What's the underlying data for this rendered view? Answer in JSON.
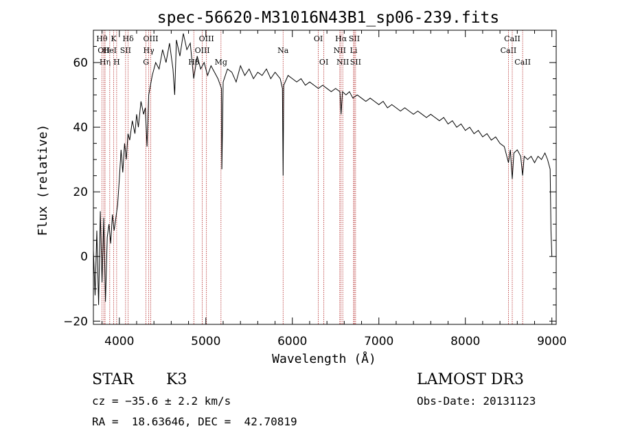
{
  "chart_data": {
    "type": "line",
    "title": "spec-56620-M31016N43B1_sp06-239.fits",
    "xlabel": "Wavelength (Å)",
    "ylabel": "Flux (relative)",
    "xlim": [
      3700,
      9050
    ],
    "ylim": [
      -21,
      70
    ],
    "xticks": [
      4000,
      5000,
      6000,
      7000,
      8000,
      9000
    ],
    "xtick_labels": [
      "4000",
      "5000",
      "6000",
      "7000",
      "8000",
      "9000"
    ],
    "yticks": [
      -20,
      0,
      20,
      40,
      60
    ],
    "ytick_labels": [
      "−20",
      "0",
      "20",
      "40",
      "60"
    ],
    "line_color": "#000000",
    "marker_color": "#b22222",
    "spectrum": [
      [
        3700,
        2
      ],
      [
        3720,
        -12
      ],
      [
        3740,
        8
      ],
      [
        3760,
        -15
      ],
      [
        3780,
        14
      ],
      [
        3800,
        -8
      ],
      [
        3820,
        12
      ],
      [
        3840,
        -14
      ],
      [
        3860,
        6
      ],
      [
        3880,
        10
      ],
      [
        3900,
        4
      ],
      [
        3920,
        13
      ],
      [
        3940,
        8
      ],
      [
        3960,
        12
      ],
      [
        3980,
        16
      ],
      [
        4000,
        24
      ],
      [
        4020,
        33
      ],
      [
        4040,
        26
      ],
      [
        4060,
        35
      ],
      [
        4080,
        30
      ],
      [
        4100,
        38
      ],
      [
        4120,
        36
      ],
      [
        4150,
        42
      ],
      [
        4180,
        38
      ],
      [
        4200,
        44
      ],
      [
        4220,
        40
      ],
      [
        4250,
        48
      ],
      [
        4280,
        44
      ],
      [
        4300,
        46
      ],
      [
        4320,
        34
      ],
      [
        4340,
        50
      ],
      [
        4380,
        56
      ],
      [
        4420,
        60
      ],
      [
        4460,
        58
      ],
      [
        4500,
        64
      ],
      [
        4540,
        60
      ],
      [
        4580,
        66
      ],
      [
        4620,
        58
      ],
      [
        4640,
        50
      ],
      [
        4660,
        67
      ],
      [
        4700,
        62
      ],
      [
        4740,
        69
      ],
      [
        4780,
        64
      ],
      [
        4820,
        66
      ],
      [
        4860,
        55
      ],
      [
        4900,
        62
      ],
      [
        4940,
        58
      ],
      [
        4980,
        60
      ],
      [
        5020,
        56
      ],
      [
        5060,
        59
      ],
      [
        5100,
        57
      ],
      [
        5140,
        55
      ],
      [
        5180,
        52
      ],
      [
        5185,
        27
      ],
      [
        5200,
        54
      ],
      [
        5250,
        58
      ],
      [
        5300,
        57
      ],
      [
        5350,
        54
      ],
      [
        5400,
        59
      ],
      [
        5450,
        56
      ],
      [
        5500,
        58
      ],
      [
        5550,
        55
      ],
      [
        5600,
        57
      ],
      [
        5650,
        56
      ],
      [
        5700,
        58
      ],
      [
        5750,
        55
      ],
      [
        5800,
        57
      ],
      [
        5860,
        55
      ],
      [
        5885,
        52
      ],
      [
        5893,
        25
      ],
      [
        5900,
        53
      ],
      [
        5950,
        56
      ],
      [
        6000,
        55
      ],
      [
        6050,
        54
      ],
      [
        6100,
        55
      ],
      [
        6150,
        53
      ],
      [
        6200,
        54
      ],
      [
        6250,
        53
      ],
      [
        6300,
        52
      ],
      [
        6350,
        53
      ],
      [
        6400,
        52
      ],
      [
        6450,
        51
      ],
      [
        6500,
        52
      ],
      [
        6550,
        51
      ],
      [
        6563,
        44
      ],
      [
        6580,
        51
      ],
      [
        6620,
        50
      ],
      [
        6660,
        51
      ],
      [
        6700,
        49
      ],
      [
        6750,
        50
      ],
      [
        6800,
        49
      ],
      [
        6850,
        48
      ],
      [
        6900,
        49
      ],
      [
        6950,
        48
      ],
      [
        7000,
        47
      ],
      [
        7050,
        48
      ],
      [
        7100,
        46
      ],
      [
        7150,
        47
      ],
      [
        7200,
        46
      ],
      [
        7250,
        45
      ],
      [
        7300,
        46
      ],
      [
        7350,
        45
      ],
      [
        7400,
        44
      ],
      [
        7450,
        45
      ],
      [
        7500,
        44
      ],
      [
        7550,
        43
      ],
      [
        7600,
        44
      ],
      [
        7650,
        43
      ],
      [
        7700,
        42
      ],
      [
        7750,
        43
      ],
      [
        7800,
        41
      ],
      [
        7850,
        42
      ],
      [
        7900,
        40
      ],
      [
        7950,
        41
      ],
      [
        8000,
        39
      ],
      [
        8050,
        40
      ],
      [
        8100,
        38
      ],
      [
        8150,
        39
      ],
      [
        8200,
        37
      ],
      [
        8250,
        38
      ],
      [
        8300,
        36
      ],
      [
        8350,
        37
      ],
      [
        8400,
        35
      ],
      [
        8450,
        34
      ],
      [
        8498,
        29
      ],
      [
        8520,
        33
      ],
      [
        8542,
        24
      ],
      [
        8560,
        32
      ],
      [
        8600,
        33
      ],
      [
        8640,
        31
      ],
      [
        8662,
        25
      ],
      [
        8680,
        31
      ],
      [
        8720,
        30
      ],
      [
        8760,
        31
      ],
      [
        8800,
        29
      ],
      [
        8840,
        31
      ],
      [
        8880,
        30
      ],
      [
        8920,
        32
      ],
      [
        8950,
        30
      ],
      [
        8980,
        27
      ],
      [
        8990,
        8
      ],
      [
        9000,
        0
      ]
    ],
    "line_markers": [
      {
        "x": 3798,
        "label": "Hθ",
        "row": 0
      },
      {
        "x": 3820,
        "label": "OII",
        "row": 1
      },
      {
        "x": 3835,
        "label": "Hη",
        "row": 2
      },
      {
        "x": 3889,
        "label": "HeI",
        "row": 1
      },
      {
        "x": 3934,
        "label": "K",
        "row": 0
      },
      {
        "x": 3969,
        "label": "H",
        "row": 2
      },
      {
        "x": 4072,
        "label": "SII",
        "row": 1
      },
      {
        "x": 4102,
        "label": "Hδ",
        "row": 0
      },
      {
        "x": 4308,
        "label": "G",
        "row": 2
      },
      {
        "x": 4340,
        "label": "Hγ",
        "row": 1
      },
      {
        "x": 4363,
        "label": "OIII",
        "row": 0
      },
      {
        "x": 4861,
        "label": "Hβ",
        "row": 2
      },
      {
        "x": 4959,
        "label": "OIII",
        "row": 1
      },
      {
        "x": 5007,
        "label": "OIII",
        "row": 0
      },
      {
        "x": 5175,
        "label": "Mg",
        "row": 2
      },
      {
        "x": 5893,
        "label": "Na",
        "row": 1
      },
      {
        "x": 6300,
        "label": "OI",
        "row": 0
      },
      {
        "x": 6364,
        "label": "OI",
        "row": 2
      },
      {
        "x": 6548,
        "label": "NII",
        "row": 1
      },
      {
        "x": 6563,
        "label": "Hα",
        "row": 0
      },
      {
        "x": 6583,
        "label": "NII",
        "row": 2
      },
      {
        "x": 6708,
        "label": "Li",
        "row": 1
      },
      {
        "x": 6716,
        "label": "SII",
        "row": 0
      },
      {
        "x": 6731,
        "label": "SII",
        "row": 2
      },
      {
        "x": 8498,
        "label": "CaII",
        "row": 1
      },
      {
        "x": 8542,
        "label": "CaII",
        "row": 0
      },
      {
        "x": 8662,
        "label": "CaII",
        "row": 2
      }
    ]
  },
  "footer": {
    "object_class": "STAR",
    "subclass": "K3",
    "survey": "LAMOST DR3",
    "cz": "cz = −35.6 ± 2.2 km/s",
    "obs_date": "Obs-Date: 20131123",
    "coords": "RA =  18.63646, DEC =  42.70819"
  }
}
